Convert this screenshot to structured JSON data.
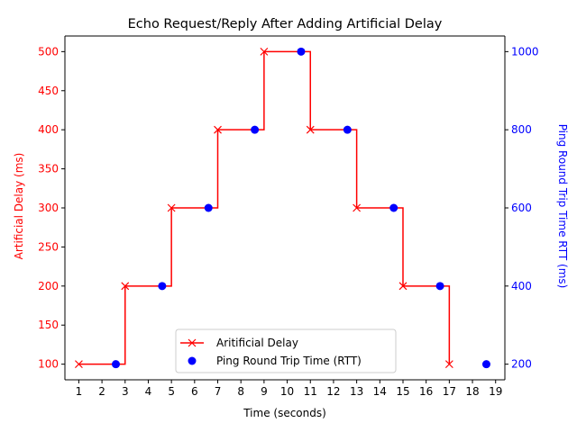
{
  "chart_data": {
    "type": "line",
    "title": "Echo Request/Reply After Adding Artificial Delay",
    "xlabel": "Time (seconds)",
    "ylabel_left": "Artificial Delay (ms)",
    "ylabel_right": "Ping Round Trip Time RTT (ms)",
    "xlim": [
      0.4,
      19.4
    ],
    "ylim_left": [
      80,
      520
    ],
    "ylim_right": [
      160,
      1040
    ],
    "x_ticks": [
      1,
      2,
      3,
      4,
      5,
      6,
      7,
      8,
      9,
      10,
      11,
      12,
      13,
      14,
      15,
      16,
      17,
      18,
      19
    ],
    "y_ticks_left": [
      100,
      150,
      200,
      250,
      300,
      350,
      400,
      450,
      500
    ],
    "y_ticks_right": [
      200,
      400,
      600,
      800,
      1000
    ],
    "grid": false,
    "legend_position": "bottom-center",
    "series": [
      {
        "name": "Aritificial Delay",
        "axis": "left",
        "style": "step-post",
        "marker": "x",
        "color": "#ff0000",
        "x": [
          1,
          3,
          5,
          7,
          9,
          11,
          13,
          15,
          17
        ],
        "y": [
          100,
          200,
          300,
          400,
          500,
          400,
          300,
          200,
          100
        ]
      },
      {
        "name": "Ping Round Trip Time (RTT)",
        "axis": "right",
        "style": "markers",
        "marker": "o",
        "color": "#0000ff",
        "x": [
          2.6,
          4.6,
          6.6,
          8.6,
          10.6,
          12.6,
          14.6,
          16.6,
          18.6
        ],
        "y": [
          200,
          400,
          600,
          800,
          1000,
          800,
          600,
          400,
          200
        ]
      }
    ]
  }
}
